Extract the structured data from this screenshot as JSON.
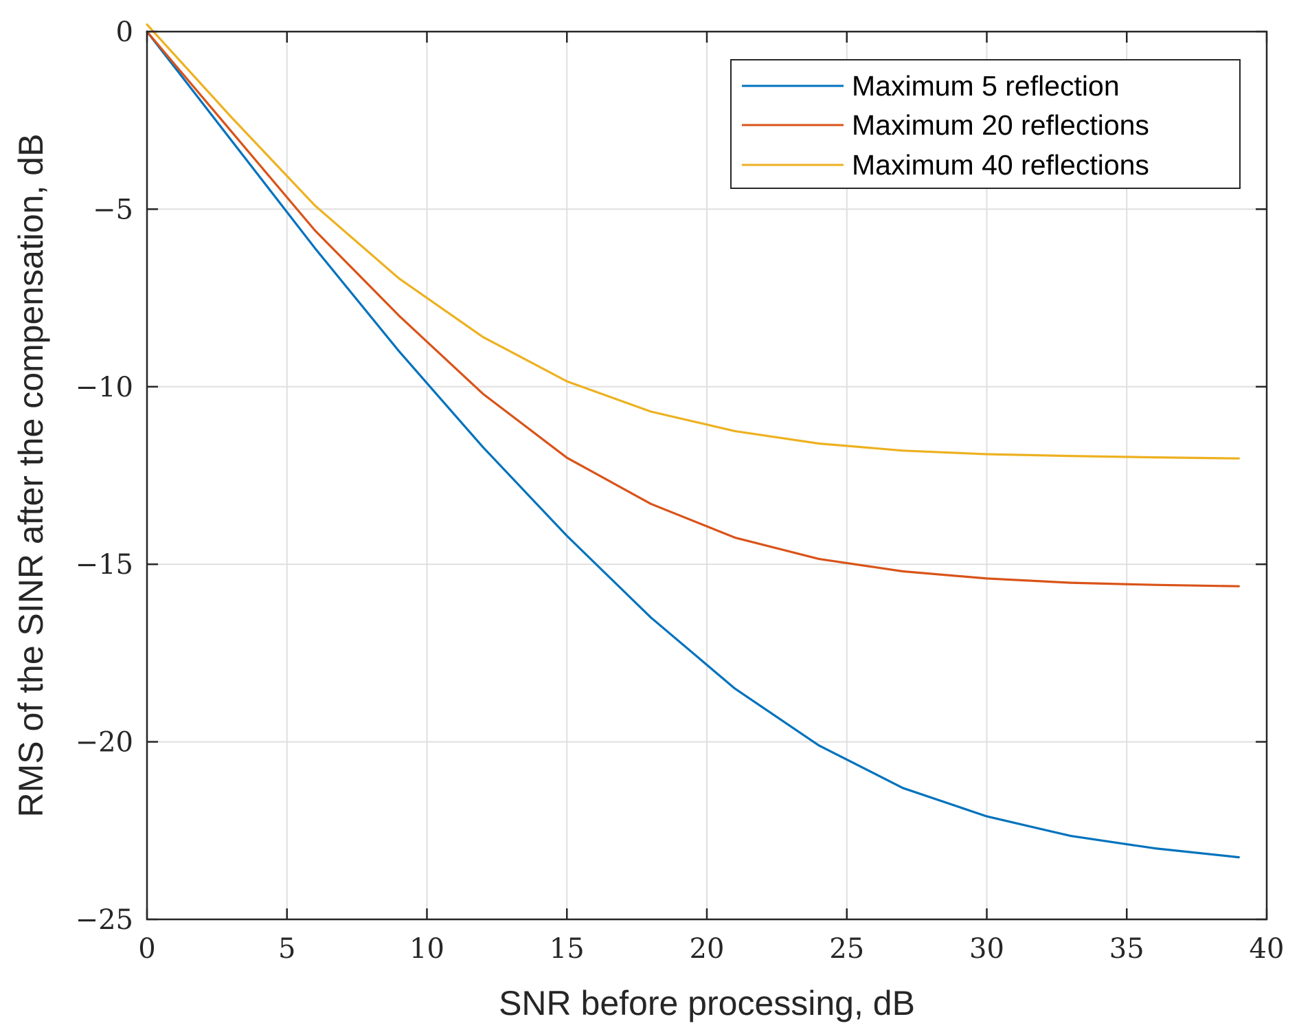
{
  "chart_data": {
    "type": "line",
    "title": "",
    "xlabel": "SNR before processing, dB",
    "ylabel": "RMS of the SINR after the compensation, dB",
    "xlim": [
      0,
      40
    ],
    "ylim": [
      -25,
      0
    ],
    "xticks": [
      0,
      5,
      10,
      15,
      20,
      25,
      30,
      35,
      40
    ],
    "xtick_labels": [
      "0",
      "5",
      "10",
      "15",
      "20",
      "25",
      "30",
      "35",
      "40"
    ],
    "yticks": [
      0,
      -5,
      -10,
      -15,
      -20,
      -25
    ],
    "ytick_labels": [
      "0",
      "−5",
      "−10",
      "−15",
      "−20",
      "−25"
    ],
    "grid": true,
    "legend_position": "top-right",
    "x": [
      0,
      3,
      6,
      9,
      12,
      15,
      18,
      21,
      24,
      27,
      30,
      33,
      36,
      39
    ],
    "series": [
      {
        "name": "Maximum 5 reflection",
        "color": "#0072BD",
        "values": [
          0,
          -3.05,
          -6.1,
          -9.0,
          -11.7,
          -14.2,
          -16.5,
          -18.5,
          -20.1,
          -21.3,
          -22.1,
          -22.65,
          -23.0,
          -23.25
        ]
      },
      {
        "name": "Maximum 20 reflections",
        "color": "#D95319",
        "values": [
          0,
          -2.8,
          -5.6,
          -8.0,
          -10.2,
          -12.0,
          -13.3,
          -14.25,
          -14.85,
          -15.2,
          -15.4,
          -15.52,
          -15.58,
          -15.62
        ]
      },
      {
        "name": "Maximum 40 reflections",
        "color": "#EDB120",
        "values": [
          0.2,
          -2.4,
          -4.9,
          -6.95,
          -8.6,
          -9.85,
          -10.7,
          -11.25,
          -11.6,
          -11.8,
          -11.9,
          -11.95,
          -11.99,
          -12.02
        ]
      }
    ]
  },
  "colors": {
    "axis": "#262626",
    "grid": "#dfdfdf",
    "background": "#ffffff"
  }
}
